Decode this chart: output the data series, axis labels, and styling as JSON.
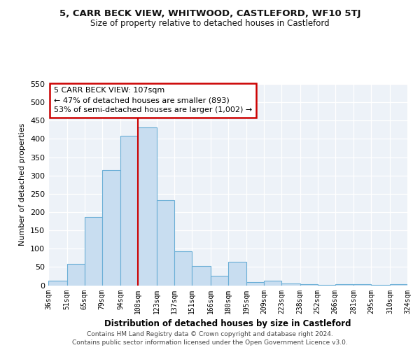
{
  "title": "5, CARR BECK VIEW, WHITWOOD, CASTLEFORD, WF10 5TJ",
  "subtitle": "Size of property relative to detached houses in Castleford",
  "xlabel": "Distribution of detached houses by size in Castleford",
  "ylabel": "Number of detached properties",
  "bar_color": "#c8ddf0",
  "bar_edge_color": "#6aaed6",
  "vline_x": 108,
  "vline_color": "#cc0000",
  "annotation_title": "5 CARR BECK VIEW: 107sqm",
  "annotation_line1": "← 47% of detached houses are smaller (893)",
  "annotation_line2": "53% of semi-detached houses are larger (1,002) →",
  "annotation_box_color": "#ffffff",
  "annotation_box_edge_color": "#cc0000",
  "bins": [
    36,
    51,
    65,
    79,
    94,
    108,
    123,
    137,
    151,
    166,
    180,
    195,
    209,
    223,
    238,
    252,
    266,
    281,
    295,
    310,
    324
  ],
  "bin_labels": [
    "36sqm",
    "51sqm",
    "65sqm",
    "79sqm",
    "94sqm",
    "108sqm",
    "123sqm",
    "137sqm",
    "151sqm",
    "166sqm",
    "180sqm",
    "195sqm",
    "209sqm",
    "223sqm",
    "238sqm",
    "252sqm",
    "266sqm",
    "281sqm",
    "295sqm",
    "310sqm",
    "324sqm"
  ],
  "heights": [
    12,
    59,
    187,
    315,
    408,
    432,
    232,
    93,
    52,
    25,
    65,
    8,
    12,
    5,
    3,
    1,
    2,
    3,
    1,
    2
  ],
  "ylim": [
    0,
    550
  ],
  "yticks": [
    0,
    50,
    100,
    150,
    200,
    250,
    300,
    350,
    400,
    450,
    500,
    550
  ],
  "footer1": "Contains HM Land Registry data © Crown copyright and database right 2024.",
  "footer2": "Contains public sector information licensed under the Open Government Licence v3.0.",
  "bg_color": "#edf2f8"
}
